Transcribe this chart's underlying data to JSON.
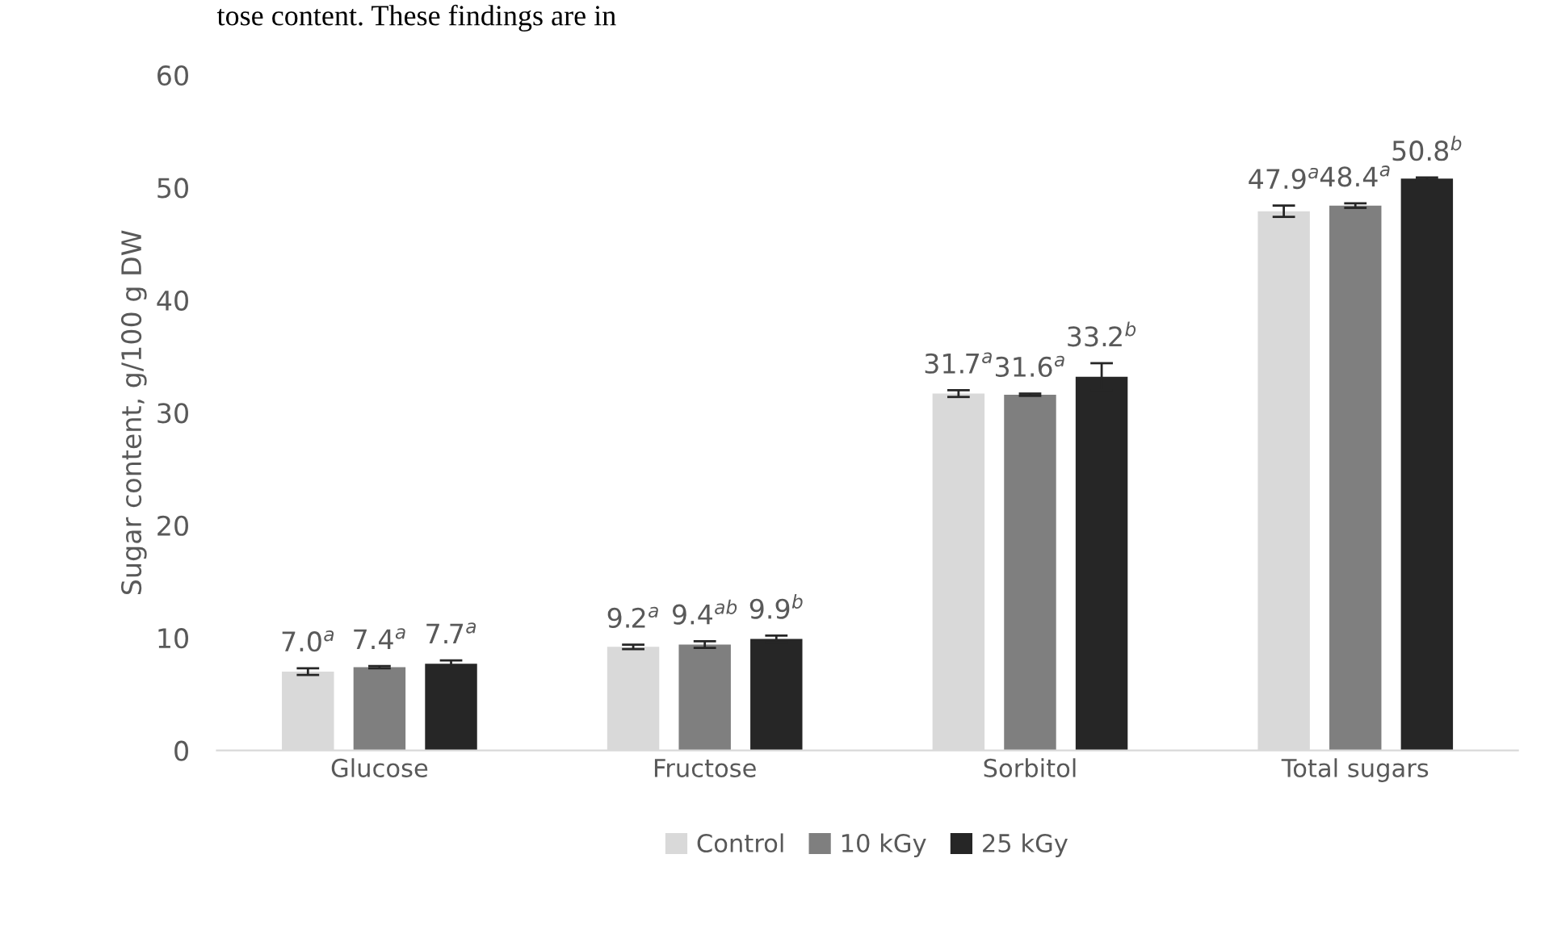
{
  "chart_data": {
    "type": "bar",
    "ylabel": "Sugar content, g/100 g DW",
    "annotations": [
      "tose content. These findings are in"
    ],
    "categories": [
      "Glucose",
      "Fructose",
      "Sorbitol",
      "Total sugars"
    ],
    "series": [
      {
        "name": "Control",
        "color": "#d9d9d9",
        "values": [
          7.0,
          9.2,
          31.7,
          47.9
        ],
        "errors": [
          0.3,
          0.2,
          0.3,
          0.5
        ],
        "value_labels": [
          "7.0$^{a}$",
          "9.2$^{a}$",
          "31.7$^{a}$",
          "47.9$^{a}$"
        ]
      },
      {
        "name": "10 kGy",
        "color": "#7f7f7f",
        "values": [
          7.4,
          9.4,
          31.6,
          48.4
        ],
        "errors": [
          0.1,
          0.3,
          0.1,
          0.2
        ],
        "value_labels": [
          "7.4$^{a}$",
          "9.4$^{ab}$",
          "31.6$^{a}$",
          "48.4$^{a}$"
        ]
      },
      {
        "name": "25 kGy",
        "color": "#262626",
        "values": [
          7.7,
          9.9,
          33.2,
          50.8
        ],
        "errors": [
          0.3,
          0.3,
          1.2,
          0.1
        ],
        "value_labels": [
          "7.7$^{a}$",
          "9.9$^{b}$",
          "33.2$^{b}$",
          "50.8$^{b}$"
        ]
      }
    ],
    "ylim": [
      0,
      60
    ],
    "yticks": [
      0,
      10,
      20,
      30,
      40,
      50,
      60
    ],
    "grid": false,
    "legend": "bottom"
  }
}
